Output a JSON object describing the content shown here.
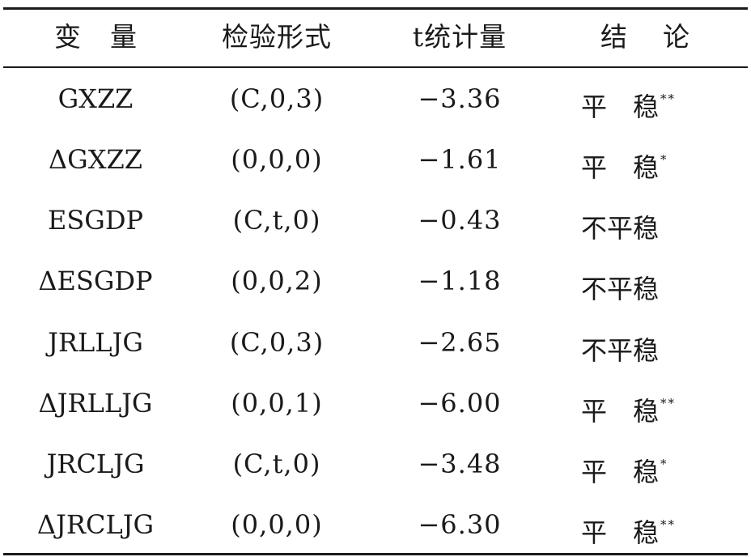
{
  "headers": [
    "变量",
    "检验形式",
    "t统计量",
    "结论"
  ],
  "rows": [
    {
      "var": "GXZZ",
      "form": "(C,0,3)",
      "t": "−3.36",
      "conclusion": "平　稳",
      "stars": "**"
    },
    {
      "var": "ΔGXZZ",
      "form": "(0,0,0)",
      "t": "−1.61",
      "conclusion": "平　稳",
      "stars": "*"
    },
    {
      "var": "ESGDP",
      "form": "(C,t,0)",
      "t": "−0.43",
      "conclusion": "不平稳",
      "stars": ""
    },
    {
      "var": "ΔESGDP",
      "form": "(0,0,2)",
      "t": "−1.18",
      "conclusion": "不平稳",
      "stars": ""
    },
    {
      "var": "JRLLJG",
      "form": "(C,0,3)",
      "t": "−2.65",
      "conclusion": "不平稳",
      "stars": ""
    },
    {
      "var": "ΔJRLLJG",
      "form": "(0,0,1)",
      "t": "−6.00",
      "conclusion": "平　稳",
      "stars": "**"
    },
    {
      "var": "JRCLJG",
      "form": "(C,t,0)",
      "t": "−3.48",
      "conclusion": "平　稳",
      "stars": "*"
    },
    {
      "var": "ΔJRCLJG",
      "form": "(0,0,0)",
      "t": "−6.30",
      "conclusion": "平　稳",
      "stars": "**"
    }
  ]
}
